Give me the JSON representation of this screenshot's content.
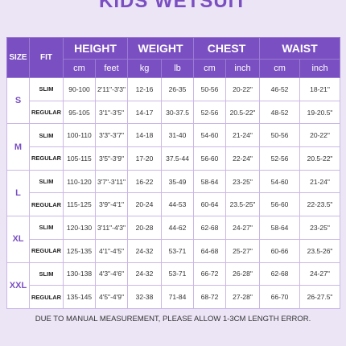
{
  "header": {
    "title": "KIDS WETSUIT"
  },
  "table": {
    "size_label": "SIZE",
    "fit_label": "FIT",
    "groups": [
      {
        "name": "HEIGHT",
        "units": [
          "cm",
          "feet"
        ]
      },
      {
        "name": "WEIGHT",
        "units": [
          "kg",
          "lb"
        ]
      },
      {
        "name": "CHEST",
        "units": [
          "cm",
          "inch"
        ]
      },
      {
        "name": "WAIST",
        "units": [
          "cm",
          "inch"
        ]
      }
    ],
    "sizes": [
      {
        "size": "S",
        "rows": [
          [
            "SLIM",
            "90-100",
            "2'11\"-3'3\"",
            "12-16",
            "26-35",
            "50-56",
            "20-22\"",
            "46-52",
            "18-21\""
          ],
          [
            "REGULAR",
            "95-105",
            "3'1\"-3'5\"",
            "14-17",
            "30-37.5",
            "52-56",
            "20.5-22\"",
            "48-52",
            "19-20.5\""
          ]
        ]
      },
      {
        "size": "M",
        "rows": [
          [
            "SLIM",
            "100-110",
            "3'3\"-3'7\"",
            "14-18",
            "31-40",
            "54-60",
            "21-24\"",
            "50-56",
            "20-22\""
          ],
          [
            "REGULAR",
            "105-115",
            "3'5\"-3'9\"",
            "17-20",
            "37.5-44",
            "56-60",
            "22-24\"",
            "52-56",
            "20.5-22\""
          ]
        ]
      },
      {
        "size": "L",
        "rows": [
          [
            "SLIM",
            "110-120",
            "3'7\"-3'11\"",
            "16-22",
            "35-49",
            "58-64",
            "23-25\"",
            "54-60",
            "21-24\""
          ],
          [
            "REGULAR",
            "115-125",
            "3'9\"-4'1\"",
            "20-24",
            "44-53",
            "60-64",
            "23.5-25\"",
            "56-60",
            "22-23.5\""
          ]
        ]
      },
      {
        "size": "XL",
        "rows": [
          [
            "SLIM",
            "120-130",
            "3'11\"-4'3\"",
            "20-28",
            "44-62",
            "62-68",
            "24-27\"",
            "58-64",
            "23-25\""
          ],
          [
            "REGULAR",
            "125-135",
            "4'1\"-4'5\"",
            "24-32",
            "53-71",
            "64-68",
            "25-27\"",
            "60-66",
            "23.5-26\""
          ]
        ]
      },
      {
        "size": "XXL",
        "rows": [
          [
            "SLIM",
            "130-138",
            "4'3\"-4'6\"",
            "24-32",
            "53-71",
            "66-72",
            "26-28\"",
            "62-68",
            "24-27\""
          ],
          [
            "REGULAR",
            "135-145",
            "4'5\"-4'9\"",
            "32-38",
            "71-84",
            "68-72",
            "27-28\"",
            "66-70",
            "26-27.5\""
          ]
        ]
      }
    ]
  },
  "footer": {
    "note": "DUE TO MANUAL MEASUREMENT, PLEASE ALLOW 1-3CM LENGTH ERROR."
  }
}
